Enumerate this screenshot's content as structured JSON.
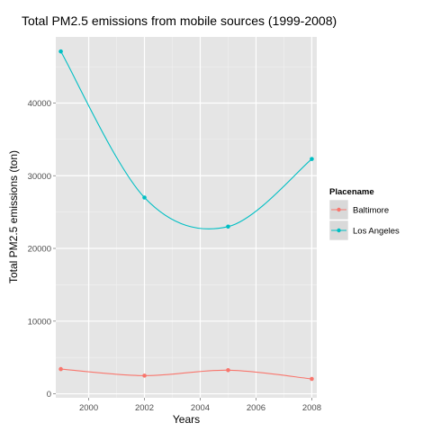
{
  "chart_data": {
    "type": "line",
    "title": "Total PM2.5 emissions from mobile sources (1999-2008)",
    "xlabel": "Years",
    "ylabel": "Total PM2.5 emissions (ton)",
    "x": [
      1999,
      2002,
      2005,
      2008
    ],
    "xlim": [
      1998.82,
      2008.18
    ],
    "ylim": [
      -550,
      49100
    ],
    "xticks": [
      2000,
      2002,
      2004,
      2006,
      2008
    ],
    "yticks": [
      0,
      10000,
      20000,
      30000,
      40000
    ],
    "grid": true,
    "smoothed": true,
    "legend": {
      "title": "Placename",
      "placement": "right"
    },
    "series": [
      {
        "name": "Baltimore",
        "color": "#F8766D",
        "values": [
          3400,
          2500,
          3250,
          2050
        ]
      },
      {
        "name": "Los Angeles",
        "color": "#00BFC4",
        "values": [
          47100,
          27000,
          23000,
          32300
        ]
      }
    ]
  }
}
